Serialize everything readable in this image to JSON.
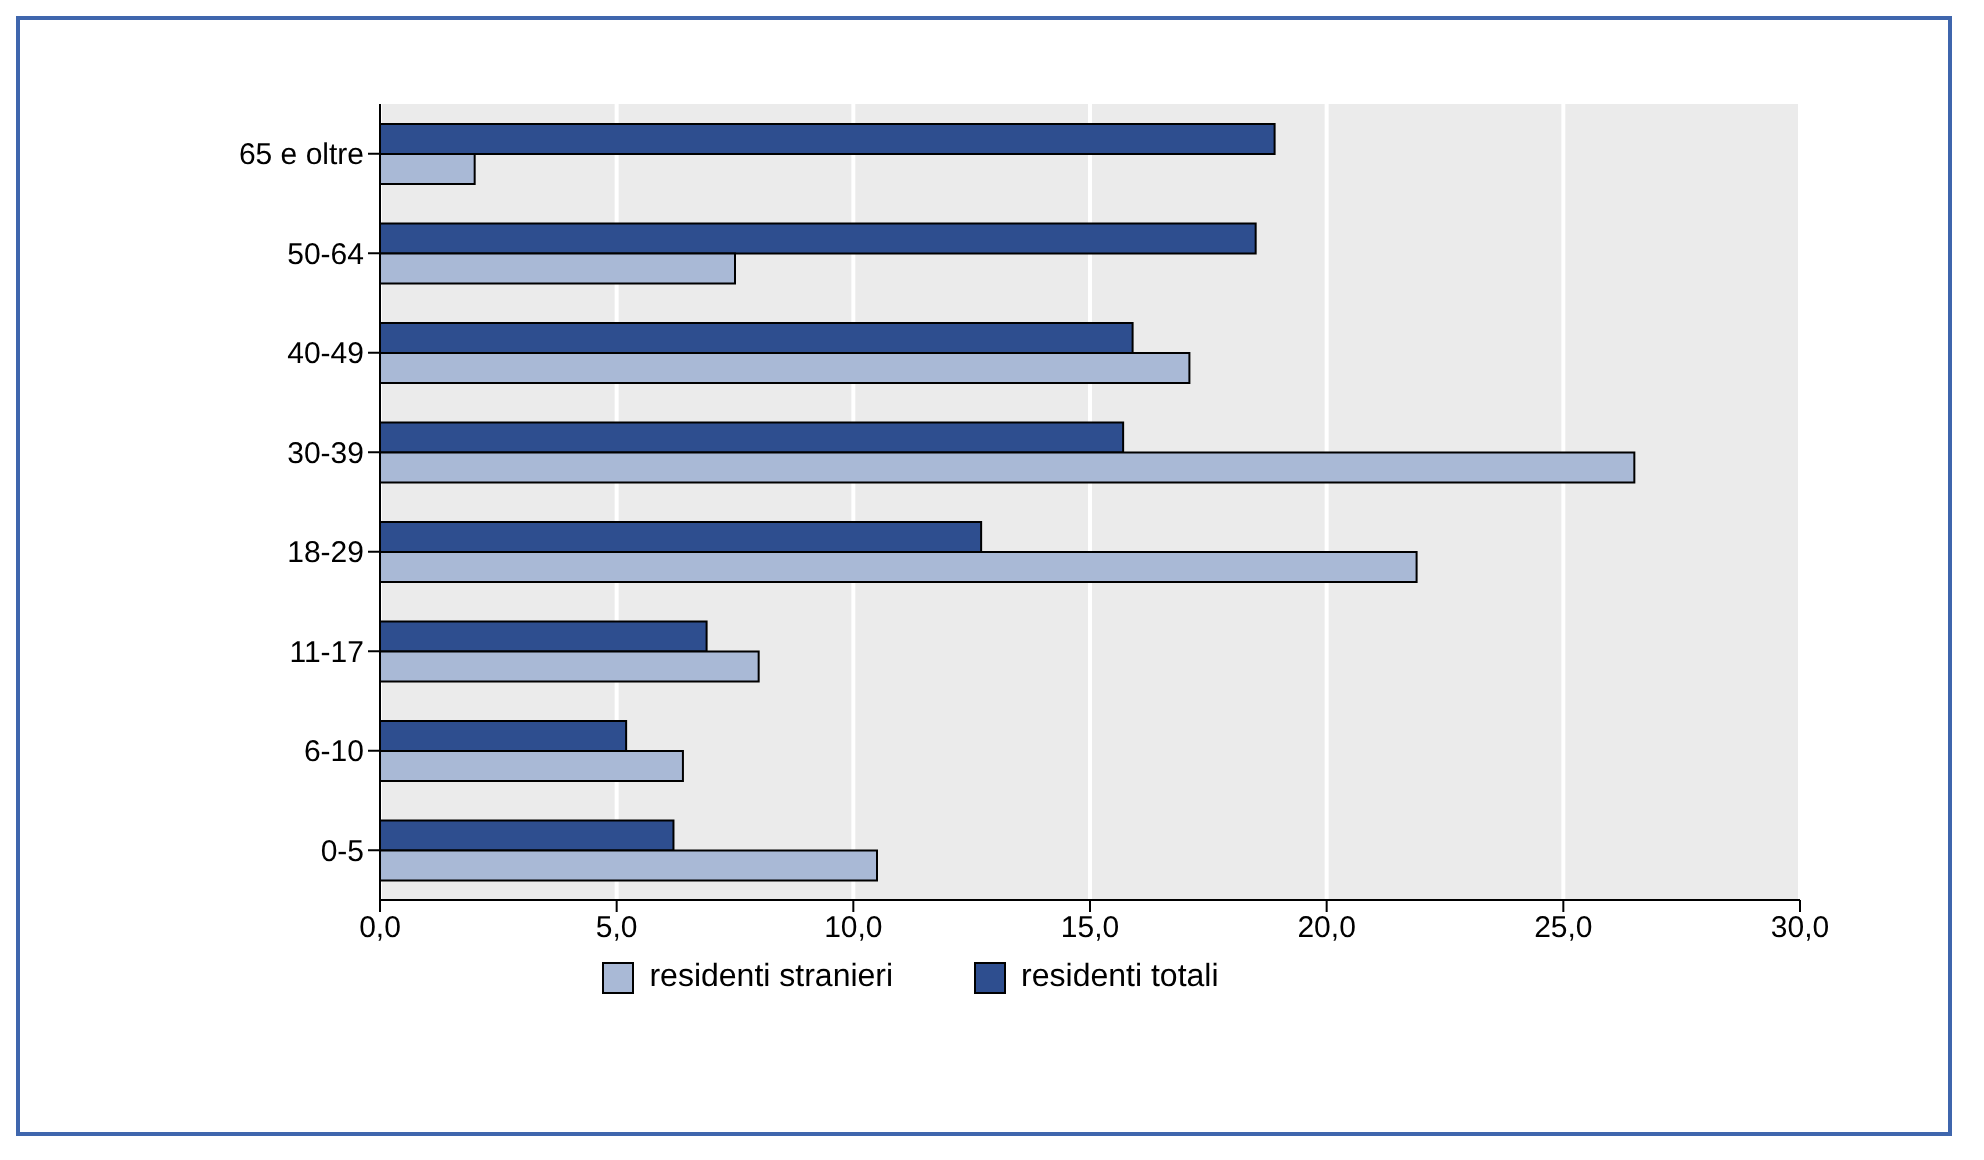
{
  "chart_data": {
    "type": "bar",
    "orientation": "horizontal",
    "categories": [
      "65 e oltre",
      "50-64",
      "40-49",
      "30-39",
      "18-29",
      "11-17",
      "6-10",
      "0-5"
    ],
    "series": [
      {
        "name": "residenti stranieri",
        "color": "#a9b9d6",
        "values": [
          2.0,
          7.5,
          17.1,
          26.5,
          21.9,
          8.0,
          6.4,
          10.5
        ]
      },
      {
        "name": "residenti totali",
        "color": "#2e4e8f",
        "values": [
          18.9,
          18.5,
          15.9,
          15.7,
          12.7,
          6.9,
          5.2,
          6.2
        ]
      }
    ],
    "xlim": [
      0,
      30
    ],
    "xticks": [
      {
        "value": 0,
        "label": "0,0"
      },
      {
        "value": 5,
        "label": "5,0"
      },
      {
        "value": 10,
        "label": "10,0"
      },
      {
        "value": 15,
        "label": "15,0"
      },
      {
        "value": 20,
        "label": "20,0"
      },
      {
        "value": 25,
        "label": "25,0"
      },
      {
        "value": 30,
        "label": "30,0"
      }
    ],
    "grid": "x",
    "legend": "bottom"
  }
}
